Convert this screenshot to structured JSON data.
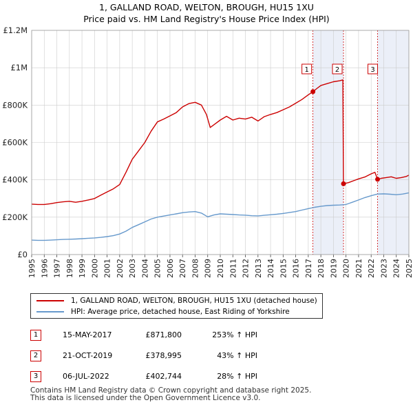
{
  "title": {
    "line1": "1, GALLAND ROAD, WELTON, BROUGH, HU15 1XU",
    "line2": "Price paid vs. HM Land Registry's House Price Index (HPI)"
  },
  "colors": {
    "property_line": "#cc0000",
    "hpi_line": "#6699cc",
    "shade": "#dde4f4",
    "grid": "#cccccc",
    "marker_border": "#cc0000",
    "vline": "#cc0000"
  },
  "chart_data": {
    "type": "line",
    "title": "1, GALLAND ROAD, WELTON, BROUGH, HU15 1XU — Price paid vs. HM Land Registry's House Price Index (HPI)",
    "xlabel": "",
    "ylabel": "",
    "xlim": [
      1995,
      2025
    ],
    "ylim": [
      0,
      1200000
    ],
    "x_ticks": [
      "1995",
      "1996",
      "1997",
      "1998",
      "1999",
      "2000",
      "2001",
      "2002",
      "2003",
      "2004",
      "2005",
      "2006",
      "2007",
      "2008",
      "2009",
      "2010",
      "2011",
      "2012",
      "2013",
      "2014",
      "2015",
      "2016",
      "2017",
      "2018",
      "2019",
      "2020",
      "2021",
      "2022",
      "2023",
      "2024",
      "2025"
    ],
    "y_ticks": [
      {
        "value": 0,
        "label": "£0"
      },
      {
        "value": 200000,
        "label": "£200K"
      },
      {
        "value": 400000,
        "label": "£400K"
      },
      {
        "value": 600000,
        "label": "£600K"
      },
      {
        "value": 800000,
        "label": "£800K"
      },
      {
        "value": 1000000,
        "label": "£1M"
      },
      {
        "value": 1200000,
        "label": "£1.2M"
      }
    ],
    "grid": true,
    "shaded_regions": [
      [
        2017.37,
        2019.8
      ],
      [
        2022.51,
        2025
      ]
    ],
    "series": [
      {
        "name": "1, GALLAND ROAD, WELTON, BROUGH, HU15 1XU (detached house)",
        "color": "#cc0000",
        "x": [
          1995,
          1995.5,
          1996,
          1996.5,
          1997,
          1997.5,
          1998,
          1998.5,
          1999,
          1999.5,
          2000,
          2000.5,
          2001,
          2001.5,
          2002,
          2002.5,
          2003,
          2003.5,
          2004,
          2004.5,
          2005,
          2005.5,
          2006,
          2006.5,
          2007,
          2007.5,
          2008,
          2008.5,
          2008.9,
          2009.2,
          2009.6,
          2010,
          2010.5,
          2011,
          2011.5,
          2012,
          2012.5,
          2013,
          2013.5,
          2014,
          2014.5,
          2015,
          2015.5,
          2016,
          2016.5,
          2017,
          2017.37,
          2017.7,
          2018,
          2018.5,
          2019,
          2019.5,
          2019.75,
          2019.8,
          2020.2,
          2020.6,
          2021,
          2021.5,
          2022,
          2022.3,
          2022.51,
          2022.8,
          2023.2,
          2023.6,
          2024,
          2024.4,
          2024.8,
          2025
        ],
        "y": [
          270000,
          268000,
          268000,
          272000,
          278000,
          282000,
          285000,
          280000,
          285000,
          292000,
          300000,
          318000,
          335000,
          352000,
          375000,
          440000,
          510000,
          555000,
          600000,
          660000,
          710000,
          725000,
          742000,
          760000,
          790000,
          808000,
          815000,
          800000,
          750000,
          680000,
          700000,
          720000,
          740000,
          720000,
          730000,
          725000,
          735000,
          715000,
          738000,
          750000,
          760000,
          775000,
          790000,
          810000,
          830000,
          855000,
          871800,
          890000,
          905000,
          915000,
          925000,
          930000,
          935000,
          378995,
          385000,
          395000,
          405000,
          415000,
          432000,
          440000,
          402744,
          408000,
          412000,
          416000,
          408000,
          412000,
          418000,
          425000
        ]
      },
      {
        "name": "HPI: Average price, detached house, East Riding of Yorkshire",
        "color": "#6699cc",
        "x": [
          1995,
          1995.5,
          1996,
          1996.5,
          1997,
          1997.5,
          1998,
          1998.5,
          1999,
          1999.5,
          2000,
          2000.5,
          2001,
          2001.5,
          2002,
          2002.5,
          2003,
          2003.5,
          2004,
          2004.5,
          2005,
          2005.5,
          2006,
          2006.5,
          2007,
          2007.5,
          2008,
          2008.5,
          2009,
          2009.5,
          2010,
          2010.5,
          2011,
          2011.5,
          2012,
          2012.5,
          2013,
          2013.5,
          2014,
          2014.5,
          2015,
          2015.5,
          2016,
          2016.5,
          2017,
          2017.5,
          2018,
          2018.5,
          2019,
          2019.5,
          2020,
          2020.5,
          2021,
          2021.5,
          2022,
          2022.5,
          2023,
          2023.5,
          2024,
          2024.5,
          2025
        ],
        "y": [
          77000,
          76000,
          76000,
          77000,
          79000,
          81000,
          82000,
          83000,
          85000,
          87000,
          89000,
          92000,
          96000,
          101000,
          110000,
          125000,
          145000,
          160000,
          175000,
          190000,
          200000,
          206000,
          212000,
          218000,
          224000,
          228000,
          230000,
          222000,
          202000,
          212000,
          218000,
          216000,
          214000,
          212000,
          211000,
          208000,
          207000,
          210000,
          213000,
          216000,
          220000,
          225000,
          230000,
          238000,
          246000,
          253000,
          258000,
          262000,
          264000,
          265000,
          268000,
          280000,
          292000,
          305000,
          315000,
          324000,
          325000,
          323000,
          320000,
          324000,
          330000
        ]
      }
    ],
    "transactions": [
      {
        "id": "1",
        "date": "15-MAY-2017",
        "year": 2017.37,
        "price": 871800,
        "price_label": "£871,800",
        "hpi_delta": "253% ↑ HPI"
      },
      {
        "id": "2",
        "date": "21-OCT-2019",
        "year": 2019.8,
        "price": 378995,
        "price_label": "£378,995",
        "hpi_delta": "43% ↑ HPI"
      },
      {
        "id": "3",
        "date": "06-JUL-2022",
        "year": 2022.51,
        "price": 402744,
        "price_label": "£402,744",
        "hpi_delta": "28% ↑ HPI"
      }
    ]
  },
  "legend": {
    "property_label": "1, GALLAND ROAD, WELTON, BROUGH, HU15 1XU (detached house)",
    "hpi_label": "HPI: Average price, detached house, East Riding of Yorkshire"
  },
  "footer": {
    "line1": "Contains HM Land Registry data © Crown copyright and database right 2025.",
    "line2": "This data is licensed under the Open Government Licence v3.0."
  }
}
